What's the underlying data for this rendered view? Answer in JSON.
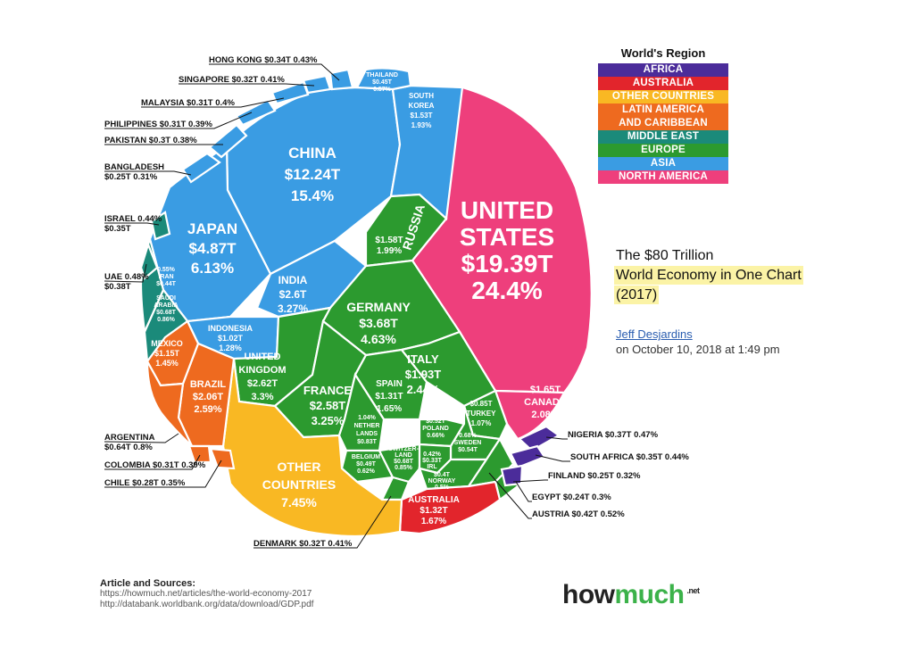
{
  "chart_data": {
    "type": "voronoi-treemap",
    "title": "The $80 Trillion",
    "title_highlight": "World Economy in One Chart",
    "year": "(2017)",
    "author": "Jeff Desjardins",
    "date": "on October 10, 2018 at 1:49 pm",
    "legend_title": "World's Region",
    "colors": {
      "AFRICA": "#4b2c9a",
      "AUSTRALIA": "#e2252c",
      "OTHER COUNTRIES": "#f9b823",
      "LATIN AMERICA AND CARIBBEAN": "#ee6a1f",
      "MIDDLE EAST": "#1b8a7a",
      "EUROPE": "#2c9a2f",
      "ASIA": "#3a9ce3",
      "NORTH AMERICA": "#ee3f7c"
    },
    "regions": [
      "AFRICA",
      "AUSTRALIA",
      "OTHER COUNTRIES",
      "LATIN AMERICA AND CARIBBEAN",
      "MIDDLE EAST",
      "EUROPE",
      "ASIA",
      "NORTH AMERICA"
    ],
    "legend": [
      "AFRICA",
      "AUSTRALIA",
      "OTHER COUNTRIES",
      "LATIN AMERICA\nAND CARIBBEAN",
      "MIDDLE EAST",
      "EUROPE",
      "ASIA",
      "NORTH AMERICA"
    ],
    "countries": [
      {
        "name": "UNITED STATES",
        "gdp": "$19.39T",
        "share": "24.4%",
        "region": "NORTH AMERICA"
      },
      {
        "name": "CHINA",
        "gdp": "$12.24T",
        "share": "15.4%",
        "region": "ASIA"
      },
      {
        "name": "JAPAN",
        "gdp": "$4.87T",
        "share": "6.13%",
        "region": "ASIA"
      },
      {
        "name": "GERMANY",
        "gdp": "$3.68T",
        "share": "4.63%",
        "region": "EUROPE"
      },
      {
        "name": "INDIA",
        "gdp": "$2.6T",
        "share": "3.27%",
        "region": "ASIA"
      },
      {
        "name": "UNITED KINGDOM",
        "gdp": "$2.62T",
        "share": "3.3%",
        "region": "EUROPE"
      },
      {
        "name": "FRANCE",
        "gdp": "$2.58T",
        "share": "3.25%",
        "region": "EUROPE"
      },
      {
        "name": "BRAZIL",
        "gdp": "$2.06T",
        "share": "2.59%",
        "region": "LATIN AMERICA AND CARIBBEAN"
      },
      {
        "name": "ITALY",
        "gdp": "$1.93T",
        "share": "2.44%",
        "region": "EUROPE"
      },
      {
        "name": "CANADA",
        "gdp": "$1.65T",
        "share": "2.08%",
        "region": "NORTH AMERICA"
      },
      {
        "name": "RUSSIA",
        "gdp": "$1.58T",
        "share": "1.99%",
        "region": "EUROPE"
      },
      {
        "name": "SOUTH KOREA",
        "gdp": "$1.53T",
        "share": "1.93%",
        "region": "ASIA"
      },
      {
        "name": "AUSTRALIA",
        "gdp": "$1.32T",
        "share": "1.67%",
        "region": "AUSTRALIA"
      },
      {
        "name": "SPAIN",
        "gdp": "$1.31T",
        "share": "1.65%",
        "region": "EUROPE"
      },
      {
        "name": "MEXICO",
        "gdp": "$1.15T",
        "share": "1.45%",
        "region": "LATIN AMERICA AND CARIBBEAN"
      },
      {
        "name": "INDONESIA",
        "gdp": "$1.02T",
        "share": "1.28%",
        "region": "ASIA"
      },
      {
        "name": "TURKEY",
        "gdp": "$0.85T",
        "share": "1.07%",
        "region": "EUROPE"
      },
      {
        "name": "NETHERLANDS",
        "gdp": "$0.83T",
        "share": "1.04%",
        "region": "EUROPE"
      },
      {
        "name": "SAUDI ARABIA",
        "gdp": "$0.68T",
        "share": "0.86%",
        "region": "MIDDLE EAST"
      },
      {
        "name": "SWITZERLAND",
        "gdp": "$0.68T",
        "share": "0.85%",
        "region": "EUROPE"
      },
      {
        "name": "ARGENTINA",
        "gdp": "$0.64T",
        "share": "0.8%",
        "region": "LATIN AMERICA AND CARIBBEAN"
      },
      {
        "name": "SWEDEN",
        "gdp": "$0.54T",
        "share": "0.68%",
        "region": "EUROPE"
      },
      {
        "name": "POLAND",
        "gdp": "$0.52T",
        "share": "0.66%",
        "region": "EUROPE"
      },
      {
        "name": "BELGIUM",
        "gdp": "$0.49T",
        "share": "0.62%",
        "region": "EUROPE"
      },
      {
        "name": "THAILAND",
        "gdp": "$0.45T",
        "share": "0.57%",
        "region": "ASIA"
      },
      {
        "name": "IRAN",
        "gdp": "$0.44T",
        "share": "0.55%",
        "region": "MIDDLE EAST"
      },
      {
        "name": "AUSTRIA",
        "gdp": "$0.42T",
        "share": "0.52%",
        "region": "EUROPE"
      },
      {
        "name": "NORWAY",
        "gdp": "$0.4T",
        "share": "0.5%",
        "region": "EUROPE"
      },
      {
        "name": "UAE",
        "gdp": "$0.38T",
        "share": "0.48%",
        "region": "MIDDLE EAST"
      },
      {
        "name": "NIGERIA",
        "gdp": "$0.37T",
        "share": "0.47%",
        "region": "AFRICA"
      },
      {
        "name": "ISRAEL",
        "gdp": "$0.35T",
        "share": "0.44%",
        "region": "MIDDLE EAST"
      },
      {
        "name": "SOUTH AFRICA",
        "gdp": "$0.35T",
        "share": "0.44%",
        "region": "AFRICA"
      },
      {
        "name": "HONG KONG",
        "gdp": "$0.34T",
        "share": "0.43%",
        "region": "ASIA"
      },
      {
        "name": "IRELAND",
        "gdp": "$0.33T",
        "share": "0.42%",
        "region": "EUROPE"
      },
      {
        "name": "DENMARK",
        "gdp": "$0.32T",
        "share": "0.41%",
        "region": "EUROPE"
      },
      {
        "name": "SINGAPORE",
        "gdp": "$0.32T",
        "share": "0.41%",
        "region": "ASIA"
      },
      {
        "name": "MALAYSIA",
        "gdp": "$0.31T",
        "share": "0.4%",
        "region": "ASIA"
      },
      {
        "name": "PHILIPPINES",
        "gdp": "$0.31T",
        "share": "0.39%",
        "region": "ASIA"
      },
      {
        "name": "COLOMBIA",
        "gdp": "$0.31T",
        "share": "0.39%",
        "region": "LATIN AMERICA AND CARIBBEAN"
      },
      {
        "name": "PAKISTAN",
        "gdp": "$0.3T",
        "share": "0.38%",
        "region": "ASIA"
      },
      {
        "name": "CHILE",
        "gdp": "$0.28T",
        "share": "0.35%",
        "region": "LATIN AMERICA AND CARIBBEAN"
      },
      {
        "name": "FINLAND",
        "gdp": "$0.25T",
        "share": "0.32%",
        "region": "EUROPE"
      },
      {
        "name": "BANGLADESH",
        "gdp": "$0.25T",
        "share": "0.31%",
        "region": "ASIA"
      },
      {
        "name": "EGYPT",
        "gdp": "$0.24T",
        "share": "0.3%",
        "region": "AFRICA"
      },
      {
        "name": "OTHER COUNTRIES",
        "gdp": "",
        "share": "7.45%",
        "region": "OTHER COUNTRIES"
      }
    ],
    "cell_labels": {
      "us": [
        "UNITED",
        "STATES",
        "$19.39T",
        "24.4%"
      ],
      "china": [
        "CHINA",
        "$12.24T",
        "15.4%"
      ],
      "japan": [
        "JAPAN",
        "$4.87T",
        "6.13%"
      ],
      "india": [
        "INDIA",
        "$2.6T",
        "3.27%"
      ],
      "russia": [
        "RUSSIA"
      ],
      "russia_val": [
        "$1.58T",
        "1.99%"
      ],
      "germany": [
        "GERMANY",
        "$3.68T",
        "4.63%"
      ],
      "uk": [
        "UNITED",
        "KINGDOM",
        "$2.62T",
        "3.3%"
      ],
      "france": [
        "FRANCE",
        "$2.58T",
        "3.25%"
      ],
      "italy": [
        "ITALY",
        "$1.93T",
        "2.44%"
      ],
      "spain": [
        "SPAIN",
        "$1.31T",
        "1.65%"
      ],
      "canada": [
        "$1.65T",
        "CANADA",
        "2.08%"
      ],
      "brazil": [
        "BRAZIL",
        "$2.06T",
        "2.59%"
      ],
      "mexico": [
        "MEXICO",
        "$1.15T",
        "1.45%"
      ],
      "other": [
        "OTHER",
        "COUNTRIES",
        "7.45%"
      ],
      "australia": [
        "AUSTRALIA",
        "$1.32T",
        "1.67%"
      ],
      "indonesia": [
        "INDONESIA",
        "$1.02T",
        "1.28%"
      ],
      "skorea": [
        "SOUTH",
        "KOREA",
        "$1.53T",
        "1.93%"
      ],
      "thailand": [
        "THAILAND",
        "$0.45T",
        "0.57%"
      ],
      "iran": [
        "0.55%",
        "IRAN",
        "$0.44T"
      ],
      "saudi": [
        "SAUDI",
        "ARABIA",
        "$0.68T",
        "0.86%"
      ],
      "turkey": [
        "$0.85T",
        "TURKEY",
        "1.07%"
      ],
      "netherlands": [
        "1.04%",
        "NETHER",
        "LANDS",
        "$0.83T"
      ],
      "poland": [
        "$0.52T",
        "POLAND",
        "0.66%"
      ],
      "sweden": [
        "0.68%",
        "SWEDEN",
        "$0.54T"
      ],
      "belgium": [
        "BELGIUM",
        "$0.49T",
        "0.62%"
      ],
      "switzerland": [
        "SWITZER-",
        "LAND",
        "$0.68T",
        "0.85%"
      ],
      "ireland": [
        "0.42%",
        "$0.33T",
        "IRL"
      ],
      "norway": [
        "$0.4T",
        "NORWAY",
        "0.5%"
      ]
    },
    "external_labels": {
      "hongkong": "HONG KONG  $0.34T  0.43%",
      "singapore": "SINGAPORE $0.32T  0.41%",
      "malaysia": "MALAYSIA  $0.31T   0.4%",
      "philippines": "PHILIPPINES $0.31T  0.39%",
      "pakistan": "PAKISTAN  $0.3T  0.38%",
      "bangladesh": [
        "BANGLADESH",
        "$0.25T  0.31%"
      ],
      "israel": [
        "ISRAEL 0.44%",
        "$0.35T"
      ],
      "uae": [
        "UAE 0.48%",
        "$0.38T"
      ],
      "argentina": [
        "ARGENTINA",
        "$0.64T  0.8%"
      ],
      "colombia": "COLOMBIA $0.31T 0.39%",
      "chile": "CHILE  $0.28T  0.35%",
      "denmark": "DENMARK $0.32T  0.41%",
      "nigeria": "NIGERIA $0.37T 0.47%",
      "southafrica": "SOUTH AFRICA $0.35T 0.44%",
      "finland": "FINLAND  $0.25T  0.32%",
      "egypt": "EGYPT  $0.24T   0.3%",
      "austria": "AUSTRIA  $0.42T   0.52%"
    },
    "sources": {
      "title": "Article and Sources:",
      "lines": [
        "https://howmuch.net/articles/the-world-economy-2017",
        "http://databank.worldbank.org/data/download/GDP.pdf"
      ]
    },
    "brand": {
      "part1": "how",
      "part2": "much",
      "suffix": ".net"
    }
  }
}
